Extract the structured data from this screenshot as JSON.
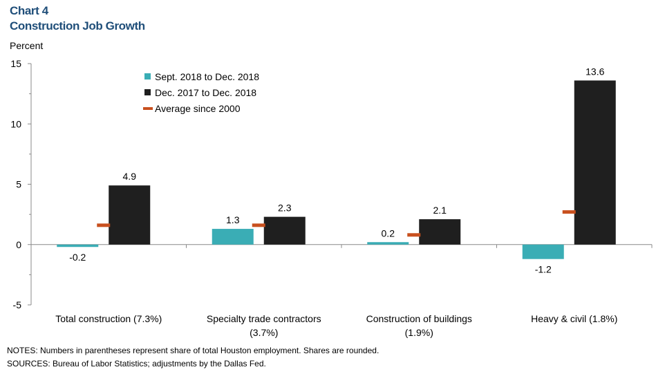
{
  "header": {
    "chart_number": "Chart 4",
    "title": "Construction Job Growth",
    "y_unit": "Percent"
  },
  "chart_data": {
    "type": "bar",
    "title": "Construction Job Growth",
    "ylabel": "Percent",
    "xlabel": "",
    "ylim": [
      -5,
      15
    ],
    "yticks": [
      -5,
      0,
      5,
      10,
      15
    ],
    "categories": [
      [
        "Total construction (7.3%)"
      ],
      [
        "Specialty trade contractors",
        "(3.7%)"
      ],
      [
        "Construction of buildings",
        "(1.9%)"
      ],
      [
        "Heavy & civil (1.8%)"
      ]
    ],
    "series": [
      {
        "name": "Sept. 2018 to Dec. 2018",
        "kind": "bar",
        "color": "#3aadb5",
        "values": [
          -0.2,
          1.3,
          0.2,
          -1.2
        ]
      },
      {
        "name": "Dec. 2017 to Dec. 2018",
        "kind": "bar",
        "color": "#1f1f1f",
        "values": [
          4.9,
          2.3,
          2.1,
          13.6
        ]
      },
      {
        "name": "Average since 2000",
        "kind": "marker",
        "color": "#c8501e",
        "values": [
          1.6,
          1.6,
          0.8,
          2.7
        ]
      }
    ],
    "legend_position": "top-left"
  },
  "notes": {
    "notes": "NOTES: Numbers in parentheses represent share of total Houston employment. Shares are rounded.",
    "sources": "SOURCES: Bureau of Labor Statistics; adjustments by the Dallas Fed."
  }
}
